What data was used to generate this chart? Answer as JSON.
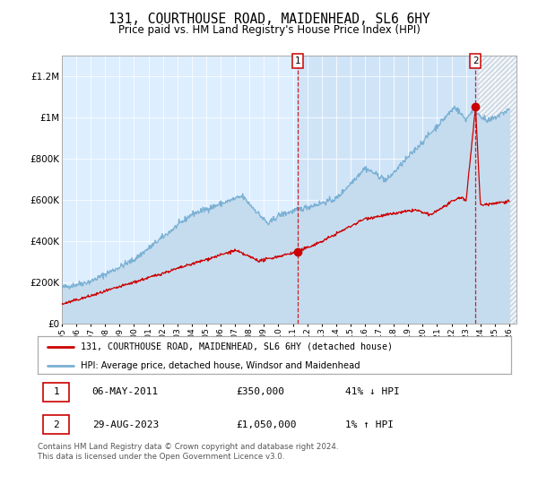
{
  "title": "131, COURTHOUSE ROAD, MAIDENHEAD, SL6 6HY",
  "subtitle": "Price paid vs. HM Land Registry's House Price Index (HPI)",
  "title_fontsize": 10.5,
  "subtitle_fontsize": 8.5,
  "background_color": "#ffffff",
  "plot_bg_color": "#ddeeff",
  "red_color": "#cc0000",
  "blue_color": "#7ab0d4",
  "blue_fill_color": "#c5dcee",
  "ylim": [
    0,
    1300000
  ],
  "xlim_start": 1995.0,
  "xlim_end": 2026.5,
  "yticks": [
    0,
    200000,
    400000,
    600000,
    800000,
    1000000,
    1200000
  ],
  "ytick_labels": [
    "£0",
    "£200K",
    "£400K",
    "£600K",
    "£800K",
    "£1M",
    "£1.2M"
  ],
  "xtick_years": [
    1995,
    1996,
    1997,
    1998,
    1999,
    2000,
    2001,
    2002,
    2003,
    2004,
    2005,
    2006,
    2007,
    2008,
    2009,
    2010,
    2011,
    2012,
    2013,
    2014,
    2015,
    2016,
    2017,
    2018,
    2019,
    2020,
    2021,
    2022,
    2023,
    2024,
    2025,
    2026
  ],
  "sale1_year": 2011.35,
  "sale1_price": 350000,
  "sale2_year": 2023.66,
  "sale2_price": 1050000,
  "legend_line1": "131, COURTHOUSE ROAD, MAIDENHEAD, SL6 6HY (detached house)",
  "legend_line2": "HPI: Average price, detached house, Windsor and Maidenhead",
  "table_row1_num": "1",
  "table_row1_date": "06-MAY-2011",
  "table_row1_price": "£350,000",
  "table_row1_hpi": "41% ↓ HPI",
  "table_row2_num": "2",
  "table_row2_date": "29-AUG-2023",
  "table_row2_price": "£1,050,000",
  "table_row2_hpi": "1% ↑ HPI",
  "footnote_line1": "Contains HM Land Registry data © Crown copyright and database right 2024.",
  "footnote_line2": "This data is licensed under the Open Government Licence v3.0."
}
